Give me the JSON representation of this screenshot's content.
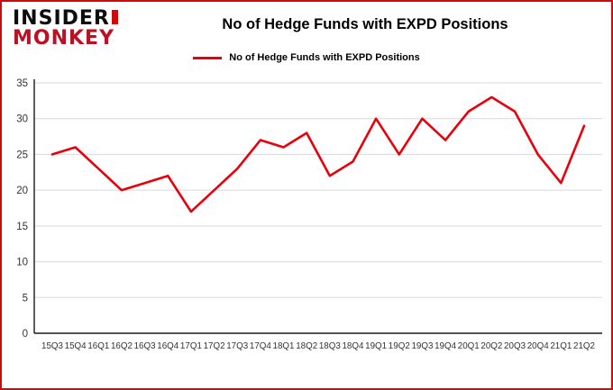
{
  "logo": {
    "line1": "INSIDER",
    "line2": "MONKEY"
  },
  "header": {
    "title": "No of Hedge Funds with EXPD Positions"
  },
  "legend": {
    "label": "No of Hedge Funds with EXPD Positions"
  },
  "colors": {
    "line": "#e8000d",
    "border": "#cf0a0a",
    "grid": "#d9d9d9",
    "axis": "#1a1a1a",
    "tick_text": "#333333"
  },
  "chart_data": {
    "type": "line",
    "title": "No of Hedge Funds with EXPD Positions",
    "categories": [
      "15Q3",
      "15Q4",
      "16Q1",
      "16Q2",
      "16Q3",
      "16Q4",
      "17Q1",
      "17Q2",
      "17Q3",
      "17Q4",
      "18Q1",
      "18Q2",
      "18Q3",
      "18Q4",
      "19Q1",
      "19Q2",
      "19Q3",
      "19Q4",
      "20Q1",
      "20Q2",
      "20Q3",
      "20Q4",
      "21Q1",
      "21Q2"
    ],
    "values": [
      25,
      26,
      23,
      20,
      21,
      22,
      17,
      20,
      23,
      27,
      26,
      28,
      22,
      24,
      30,
      25,
      30,
      27,
      31,
      33,
      31,
      25,
      21,
      29
    ],
    "xlabel": "",
    "ylabel": "",
    "ylim": [
      0,
      35
    ],
    "yticks": [
      0,
      5,
      10,
      15,
      20,
      25,
      30,
      35
    ],
    "grid": true,
    "legend_position": "top",
    "line_color": "#e8000d"
  }
}
